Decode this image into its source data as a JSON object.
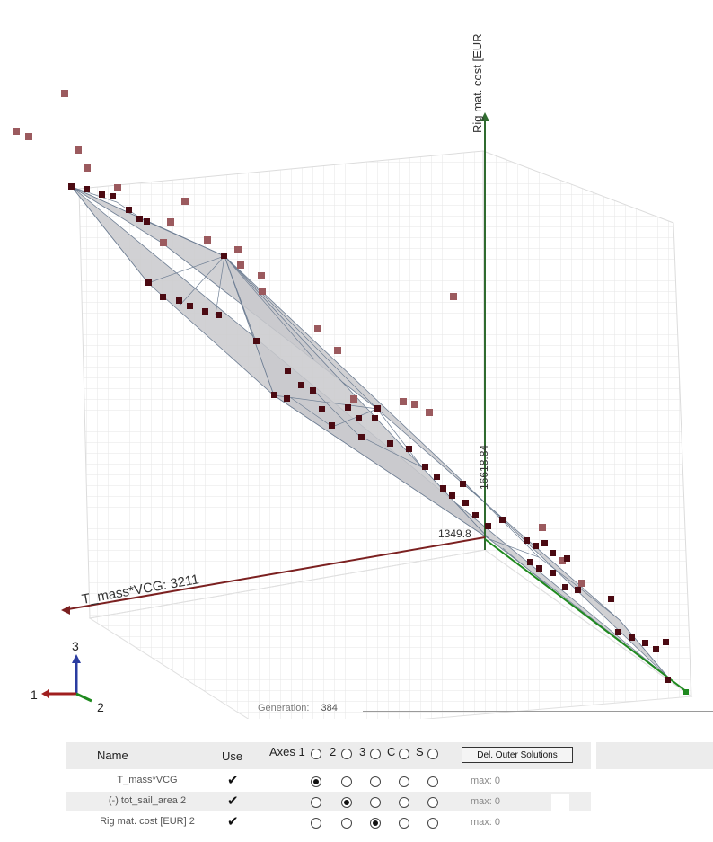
{
  "viewport": {
    "axis_z_label": "Rig mat. cost [EUR",
    "axis_x_label": "T_mass*VCG: 3211",
    "value_vertical": "16618.84",
    "value_origin": "1349.8",
    "triad": {
      "z": "3",
      "x": "1",
      "y": "2"
    },
    "colors": {
      "x_axis": "#7b2020",
      "z_axis": "#2f6b2f",
      "y_axis": "#1f8a1f",
      "point": "#5a0f15",
      "surface": "#c9c9cc",
      "triad_z": "#2a3ca0"
    }
  },
  "generation": {
    "label": "Generation:",
    "value": "384"
  },
  "table": {
    "headers": {
      "name": "Name",
      "use": "Use",
      "axes": "Axes 1",
      "a2": "2",
      "a3": "3",
      "c": "C",
      "s": "S"
    },
    "button_label": "Del. Outer Solutions",
    "rows": [
      {
        "name": "T_mass*VCG",
        "use": "✔",
        "selected": 0,
        "max": "max: 0"
      },
      {
        "name": "(-) tot_sail_area 2",
        "use": "✔",
        "selected": 1,
        "max": "max: 0"
      },
      {
        "name": "Rig mat. cost [EUR] 2",
        "use": "✔",
        "selected": 2,
        "max": "max: 0"
      }
    ]
  }
}
